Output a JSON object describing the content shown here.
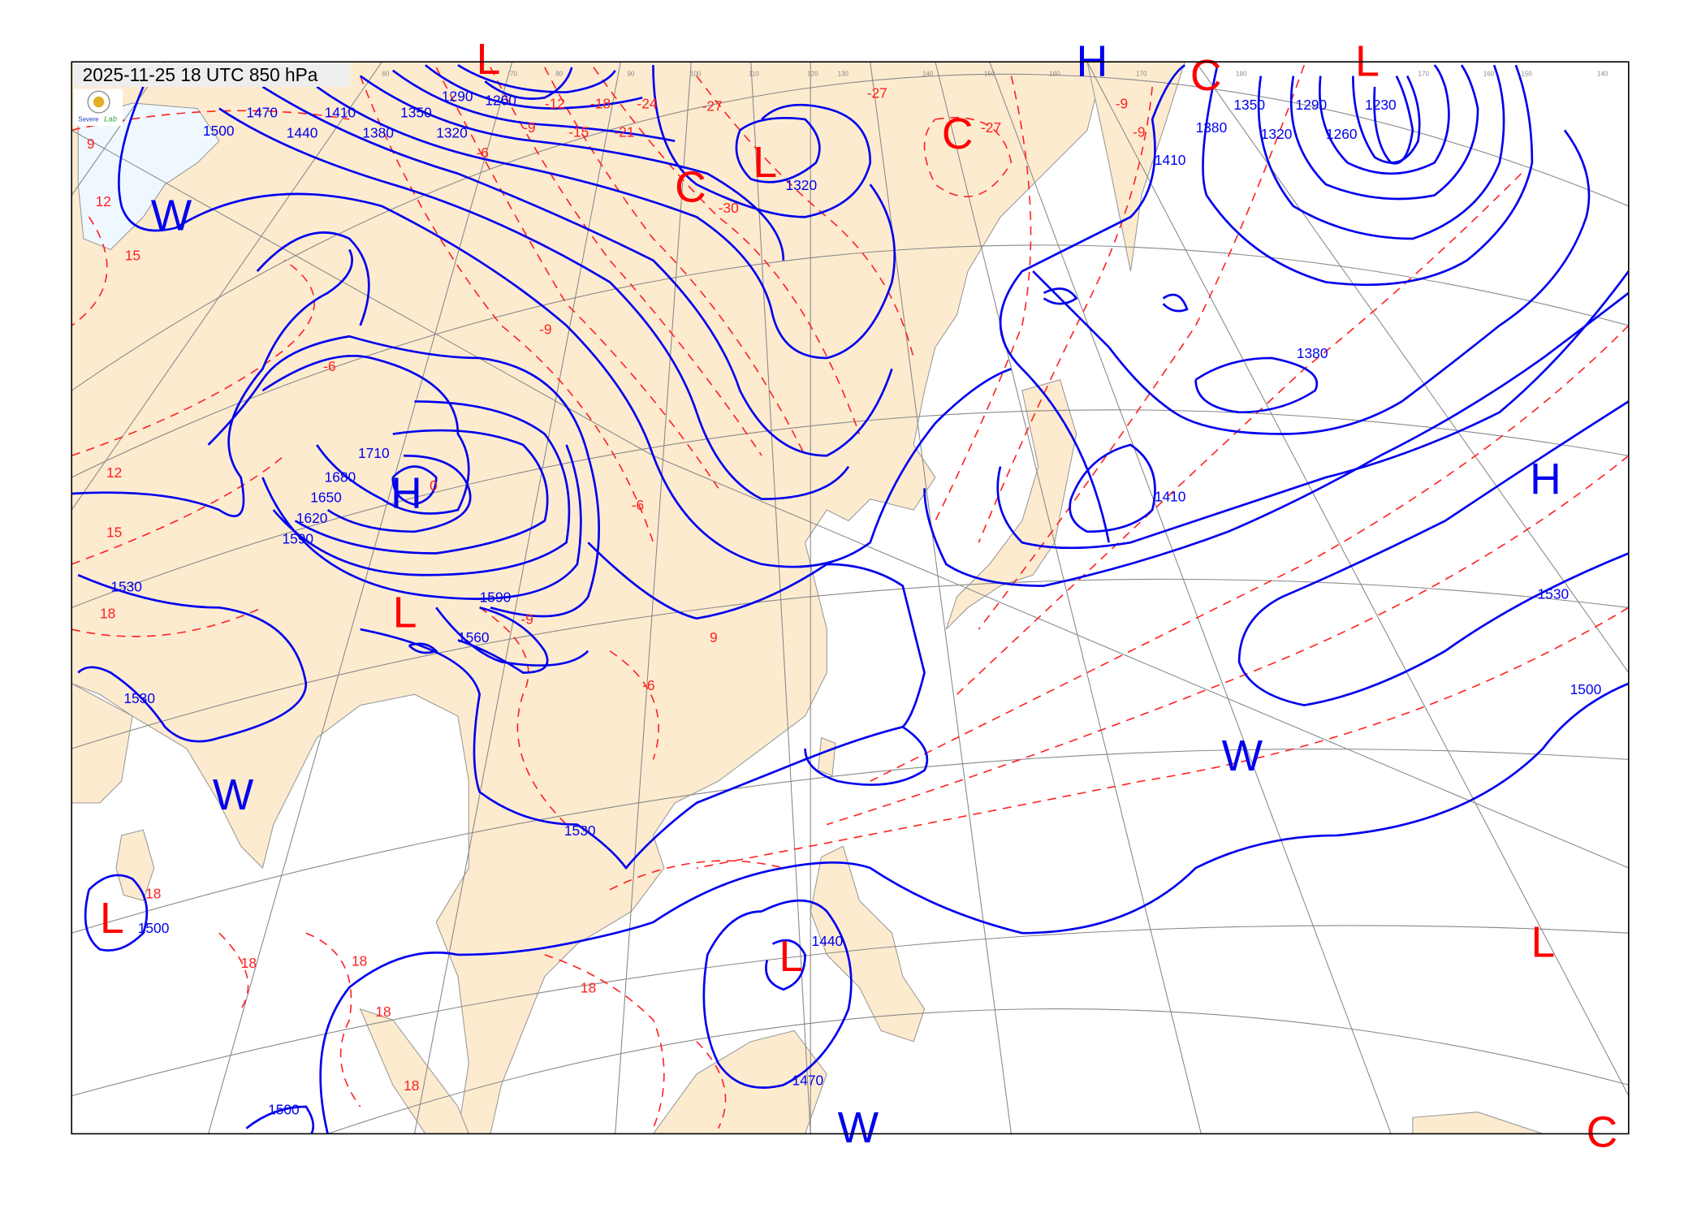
{
  "map": {
    "title": "2025-11-25 18 UTC 850 hPa",
    "logo_text": "Severe Storm Lab",
    "colors": {
      "height_contour": "#0000ee",
      "temperature_contour": "#ff2020",
      "land": "#fdebd0",
      "sea": "#ffffff",
      "grid": "#888888"
    },
    "systems": [
      {
        "id": "L1",
        "label": "L",
        "color": "red"
      },
      {
        "id": "H1",
        "label": "H",
        "color": "blue"
      },
      {
        "id": "C1",
        "label": "C",
        "color": "red"
      },
      {
        "id": "L2",
        "label": "L",
        "color": "red"
      },
      {
        "id": "C2",
        "label": "C",
        "color": "red"
      },
      {
        "id": "L3",
        "label": "L",
        "color": "red"
      },
      {
        "id": "C3",
        "label": "C",
        "color": "red"
      },
      {
        "id": "W1",
        "label": "W",
        "color": "blue"
      },
      {
        "id": "H2",
        "label": "H",
        "color": "blue"
      },
      {
        "id": "L4",
        "label": "L",
        "color": "red"
      },
      {
        "id": "H3",
        "label": "H",
        "color": "blue"
      },
      {
        "id": "W2",
        "label": "W",
        "color": "blue"
      },
      {
        "id": "W3",
        "label": "W",
        "color": "blue"
      },
      {
        "id": "L5",
        "label": "L",
        "color": "red"
      },
      {
        "id": "L6",
        "label": "L",
        "color": "red"
      },
      {
        "id": "L7",
        "label": "L",
        "color": "red"
      },
      {
        "id": "W4",
        "label": "W",
        "color": "blue"
      },
      {
        "id": "C4",
        "label": "C",
        "color": "red"
      }
    ],
    "height_labels": [
      "1500",
      "1470",
      "1440",
      "1410",
      "1380",
      "1350",
      "1320",
      "1290",
      "1260",
      "1320",
      "1410",
      "1380",
      "1350",
      "1320",
      "1290",
      "1260",
      "1230",
      "1380",
      "1410",
      "1710",
      "1680",
      "1650",
      "1620",
      "1590",
      "1530",
      "1530",
      "1590",
      "1560",
      "1530",
      "1530",
      "1500",
      "1440",
      "1470",
      "1500",
      "1500"
    ],
    "temperature_labels": [
      "9",
      "12",
      "15",
      "12",
      "15",
      "18",
      "-6",
      "-9",
      "-12",
      "-15",
      "-18",
      "-21",
      "-24",
      "-27",
      "-30",
      "-27",
      "-27",
      "-9",
      "-9",
      "-6",
      "-9",
      "-6",
      "0",
      "-9",
      "-6",
      "9",
      "18",
      "18",
      "18",
      "18",
      "18",
      "18"
    ],
    "longitude_labels": [
      "60",
      "70",
      "80",
      "90",
      "100",
      "110",
      "120",
      "130",
      "140",
      "150",
      "160",
      "170",
      "180",
      "170",
      "160",
      "150",
      "140"
    ]
  }
}
